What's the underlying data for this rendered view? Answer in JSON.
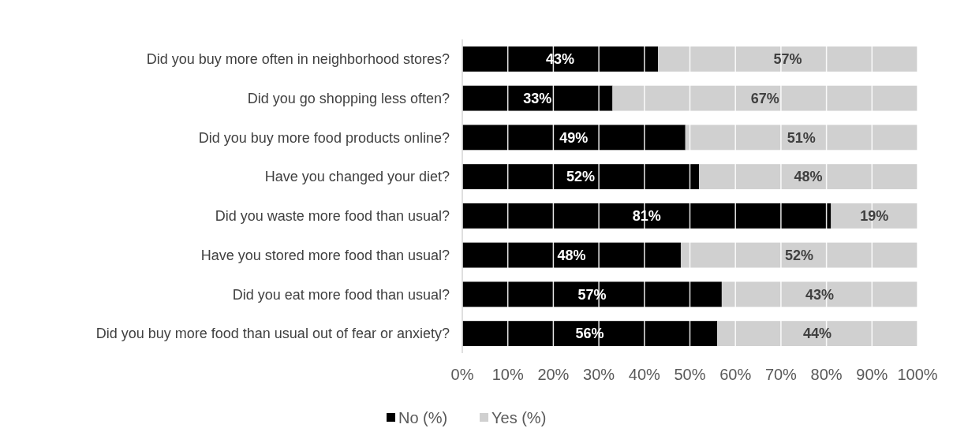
{
  "chart_data": {
    "type": "bar",
    "orientation": "horizontal",
    "stacked": true,
    "categories": [
      "Did you buy more often in neighborhood stores?",
      "Did you go shopping less often?",
      "Did you buy more food products online?",
      "Have you changed your diet?",
      "Did you waste more food than usual?",
      "Have you stored more food than usual?",
      "Did you eat more food than usual?",
      "Did you buy more food than usual out of fear or anxiety?"
    ],
    "series": [
      {
        "name": "No (%)",
        "color": "#000000",
        "values": [
          43,
          33,
          49,
          52,
          81,
          48,
          57,
          56
        ],
        "value_labels": [
          "43%",
          "33%",
          "49%",
          "52%",
          "81%",
          "48%",
          "57%",
          "56%"
        ]
      },
      {
        "name": "Yes (%)",
        "color": "#d0d0d0",
        "values": [
          57,
          67,
          51,
          48,
          19,
          52,
          43,
          44
        ],
        "value_labels": [
          "57%",
          "67%",
          "51%",
          "48%",
          "19%",
          "52%",
          "43%",
          "44%"
        ]
      }
    ],
    "xlim": [
      0,
      100
    ],
    "xticks": [
      {
        "value": 0,
        "label": "0%"
      },
      {
        "value": 10,
        "label": "10%"
      },
      {
        "value": 20,
        "label": "20%"
      },
      {
        "value": 30,
        "label": "30%"
      },
      {
        "value": 40,
        "label": "40%"
      },
      {
        "value": 50,
        "label": "50%"
      },
      {
        "value": 60,
        "label": "60%"
      },
      {
        "value": 70,
        "label": "70%"
      },
      {
        "value": 80,
        "label": "80%"
      },
      {
        "value": 90,
        "label": "90%"
      },
      {
        "value": 100,
        "label": "100%"
      }
    ],
    "grid": "x",
    "legend": "bottom"
  }
}
